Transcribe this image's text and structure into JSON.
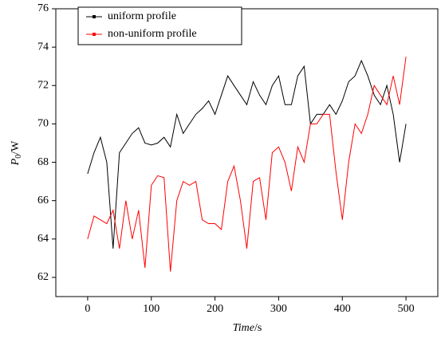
{
  "chart_data": {
    "type": "line",
    "x_label": {
      "text": "Time",
      "unit": "/s"
    },
    "y_label": {
      "symbol": "P",
      "subscript": "0",
      "unit": "/W"
    },
    "x": [
      0,
      10,
      20,
      30,
      40,
      50,
      60,
      70,
      80,
      90,
      100,
      110,
      120,
      130,
      140,
      150,
      160,
      170,
      180,
      190,
      200,
      210,
      220,
      230,
      240,
      250,
      260,
      270,
      280,
      290,
      300,
      310,
      320,
      330,
      340,
      350,
      360,
      370,
      380,
      390,
      400,
      410,
      420,
      430,
      440,
      450,
      460,
      470,
      480,
      490,
      500
    ],
    "series": [
      {
        "name": "uniform profile",
        "color": "#000000",
        "values": [
          67.4,
          68.5,
          69.3,
          68.0,
          63.5,
          68.5,
          69.0,
          69.5,
          69.8,
          69.0,
          68.9,
          69.0,
          69.3,
          68.8,
          70.5,
          69.5,
          70.0,
          70.5,
          70.8,
          71.2,
          70.5,
          71.5,
          72.5,
          72.0,
          71.5,
          71.0,
          72.2,
          71.5,
          71.0,
          72.0,
          72.5,
          71.0,
          71.0,
          72.5,
          73.0,
          70.0,
          70.5,
          70.5,
          71.0,
          70.5,
          71.2,
          72.2,
          72.5,
          73.3,
          72.5,
          71.5,
          71.0,
          72.0,
          70.5,
          68.0,
          70.0
        ]
      },
      {
        "name": "non-uniform profile",
        "color": "#ff0000",
        "values": [
          64.0,
          65.2,
          65.0,
          64.8,
          65.5,
          63.5,
          66.0,
          64.0,
          65.5,
          62.5,
          66.8,
          67.3,
          67.2,
          62.3,
          66.0,
          67.0,
          66.8,
          67.0,
          65.0,
          64.8,
          64.8,
          64.5,
          67.0,
          67.8,
          66.0,
          63.5,
          67.0,
          67.2,
          65.0,
          68.5,
          68.8,
          68.0,
          66.5,
          68.8,
          68.0,
          70.0,
          70.0,
          70.5,
          70.5,
          67.5,
          65.0,
          68.0,
          70.0,
          69.5,
          70.5,
          72.0,
          71.5,
          71.0,
          72.5,
          71.0,
          73.5
        ]
      }
    ],
    "xlim": [
      -50,
      550
    ],
    "xticks": [
      0,
      100,
      200,
      300,
      400,
      500
    ],
    "ylim": [
      61,
      76
    ],
    "yticks": [
      62,
      64,
      66,
      68,
      70,
      72,
      74,
      76
    ],
    "legend": "upper left",
    "grid": false
  }
}
